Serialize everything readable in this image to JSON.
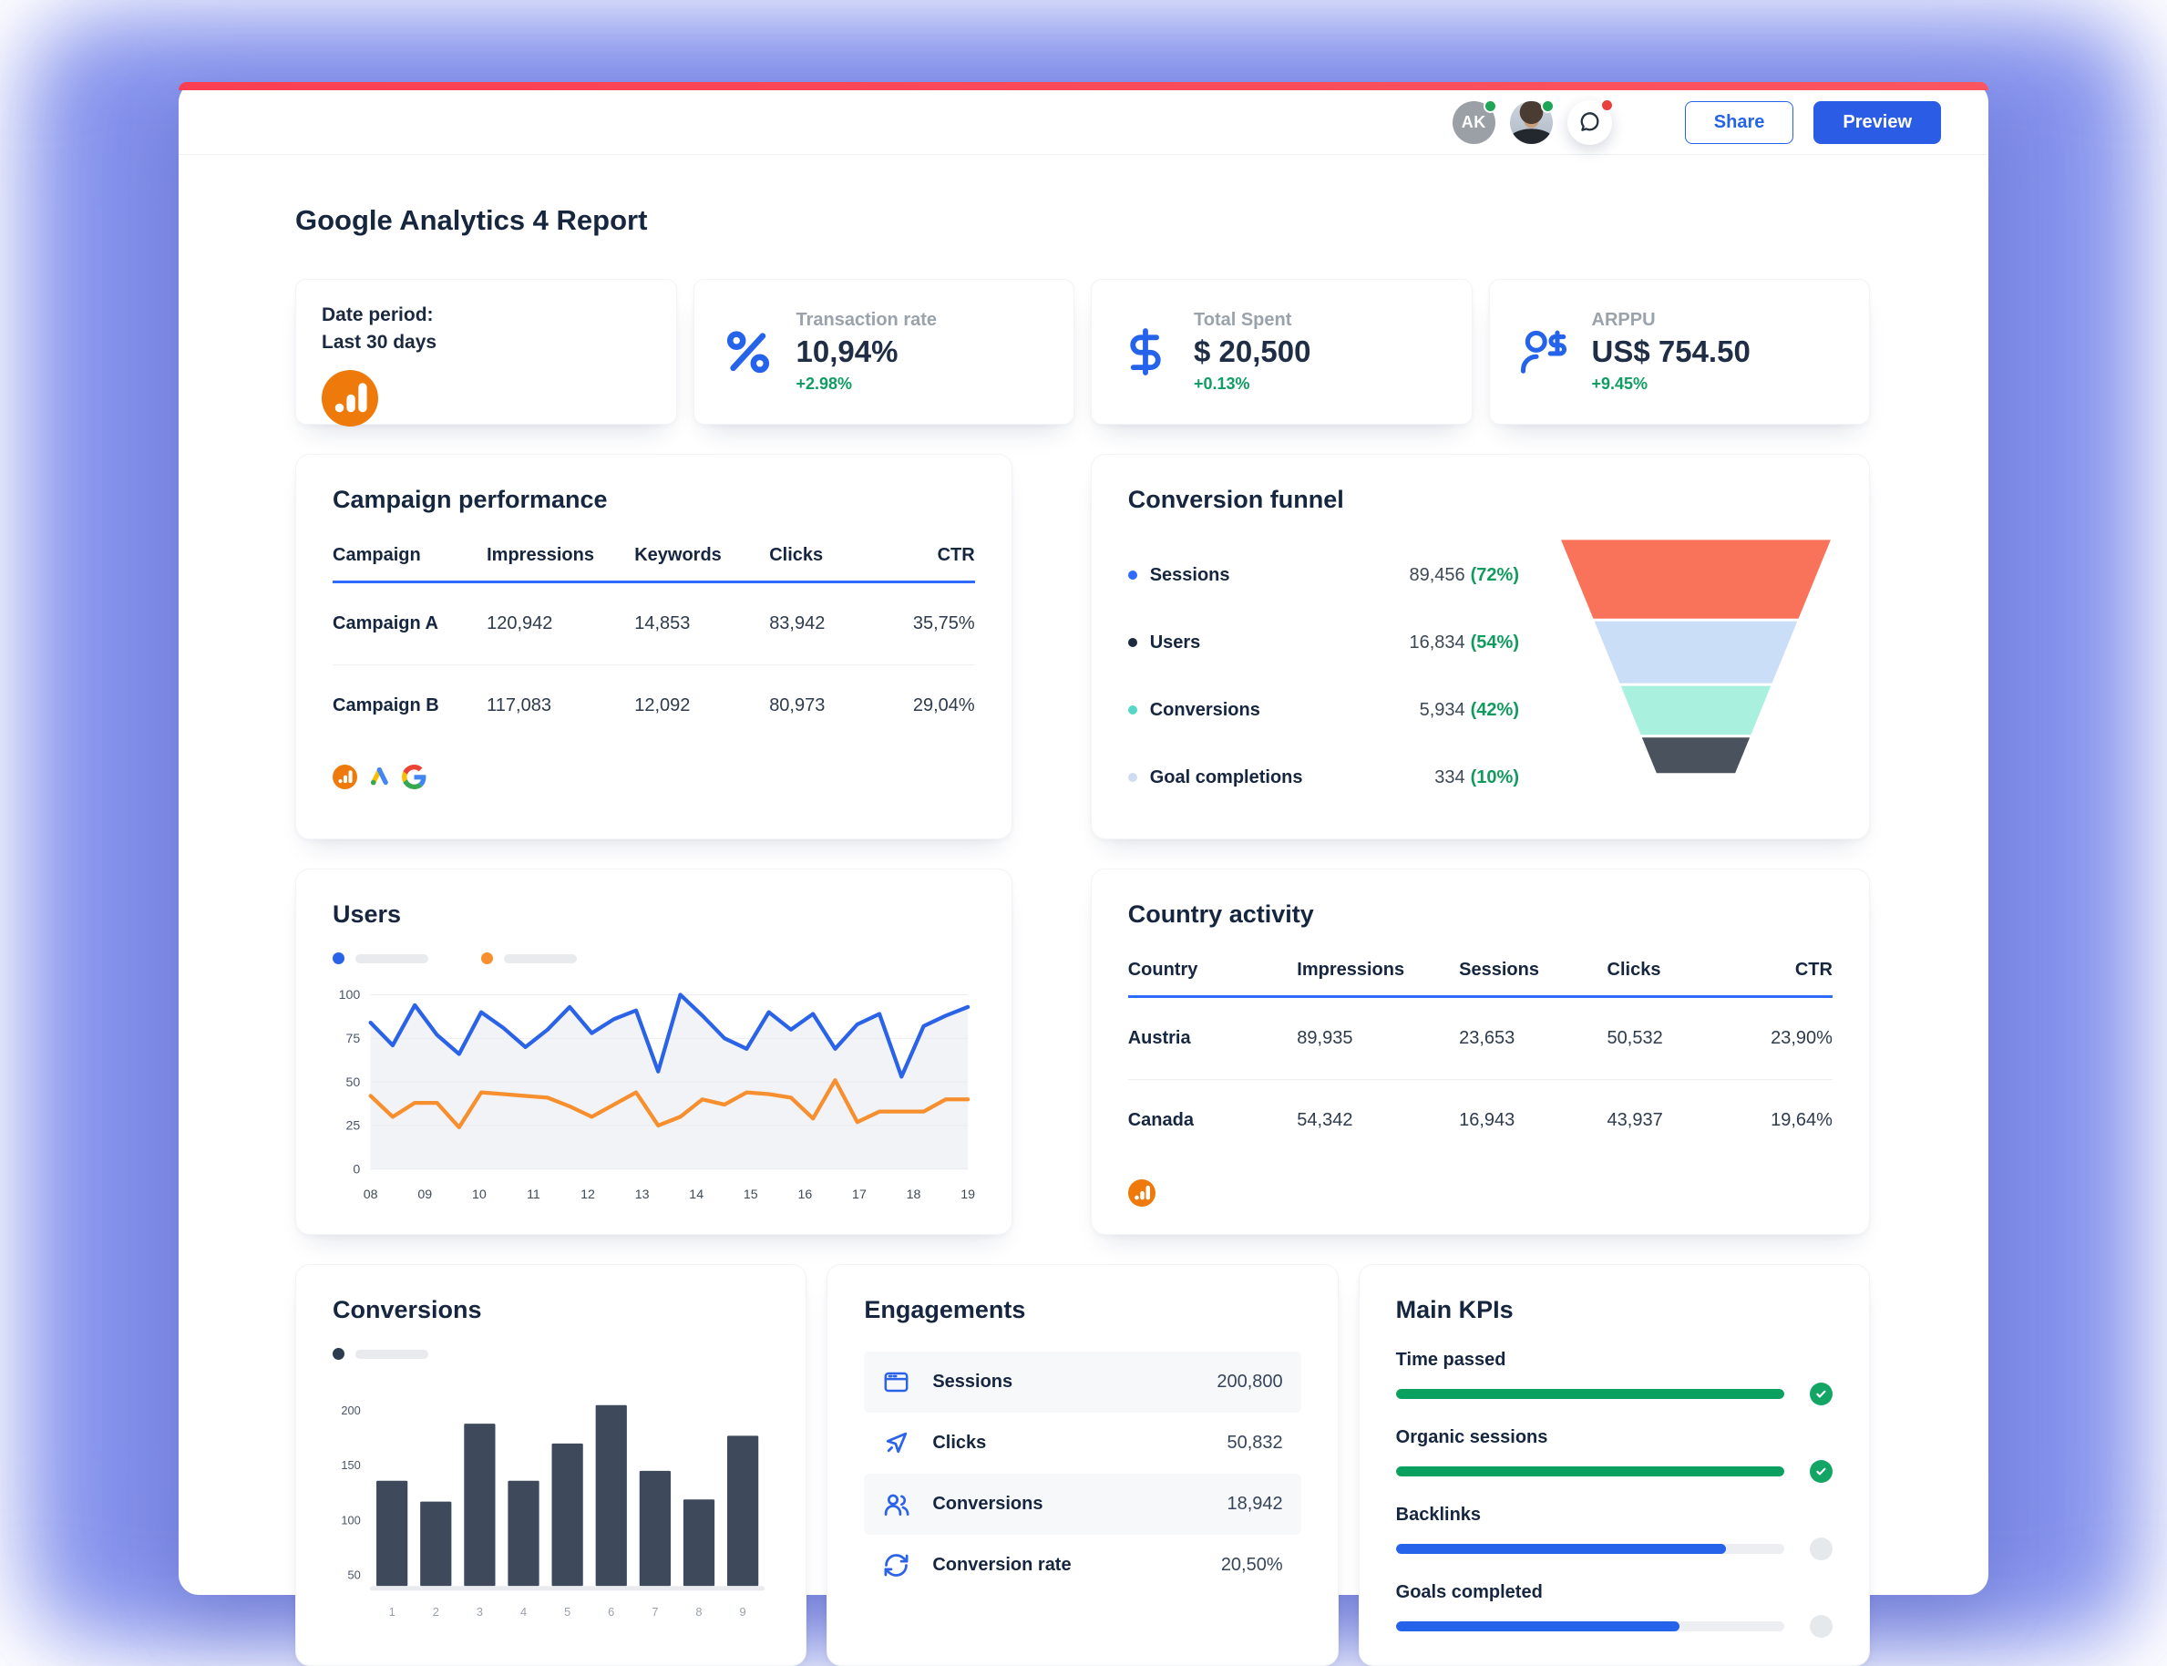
{
  "topbar": {
    "avatar_initials": "AK",
    "share_label": "Share",
    "preview_label": "Preview"
  },
  "page_title": "Google Analytics 4 Report",
  "colors": {
    "accent_bar": "#fb4455",
    "primary_blue": "#2563eb",
    "positive_green": "#0f9d63",
    "table_underline": "#2f6bff"
  },
  "kpi_cards": {
    "date_period": {
      "line1": "Date period:",
      "line2": "Last 30 days",
      "icon": "google-analytics-icon"
    },
    "transaction_rate": {
      "label": "Transaction rate",
      "value": "10,94%",
      "delta": "+2.98%",
      "icon": "percent-icon"
    },
    "total_spent": {
      "label": "Total Spent",
      "value": "$ 20,500",
      "delta": "+0.13%",
      "icon": "dollar-icon"
    },
    "arppu": {
      "label": "ARPPU",
      "value": "US$ 754.50",
      "delta": "+9.45%",
      "icon": "user-dollar-icon"
    }
  },
  "campaign_performance": {
    "title": "Campaign performance",
    "columns": [
      "Campaign",
      "Impressions",
      "Keywords",
      "Clicks",
      "CTR"
    ],
    "rows": [
      [
        "Campaign A",
        "120,942",
        "14,853",
        "83,942",
        "35,75%"
      ],
      [
        "Campaign B",
        "117,083",
        "12,092",
        "80,973",
        "29,04%"
      ]
    ],
    "source_icons": [
      "google-analytics-icon",
      "google-ads-icon",
      "google-icon"
    ]
  },
  "conversion_funnel": {
    "title": "Conversion funnel",
    "stages": [
      {
        "label": "Sessions",
        "value": "89,456",
        "pct": "(72%)",
        "dot_color": "#2f6bff",
        "segment_color": "#f9735b"
      },
      {
        "label": "Users",
        "value": "16,834",
        "pct": "(54%)",
        "dot_color": "#1b2a3d",
        "segment_color": "#cbdef7"
      },
      {
        "label": "Conversions",
        "value": "5,934",
        "pct": "(42%)",
        "dot_color": "#57d7c6",
        "segment_color": "#a9f0df"
      },
      {
        "label": "Goal completions",
        "value": "334",
        "pct": "(10%)",
        "dot_color": "#cfdcf0",
        "segment_color": "#49525d"
      }
    ]
  },
  "users_chart": {
    "title": "Users",
    "type": "line",
    "x_labels": [
      "08",
      "09",
      "10",
      "11",
      "12",
      "13",
      "14",
      "15",
      "16",
      "17",
      "18",
      "19"
    ],
    "y_ticks": [
      0,
      25,
      50,
      75,
      100
    ],
    "ylim": [
      0,
      100
    ],
    "grid": true,
    "series": [
      {
        "name": "users-series-blue",
        "color": "#2b63e8",
        "values": [
          84,
          71,
          94,
          77,
          66,
          90,
          81,
          70,
          80,
          93,
          78,
          86,
          91,
          56,
          100,
          88,
          75,
          69,
          90,
          80,
          89,
          69,
          83,
          89,
          53,
          82,
          88,
          93
        ]
      },
      {
        "name": "users-series-orange",
        "color": "#f78f2e",
        "values": [
          42,
          30,
          38,
          38,
          24,
          44,
          43,
          42,
          41,
          36,
          30,
          37,
          44,
          25,
          30,
          40,
          37,
          44,
          43,
          41,
          29,
          51,
          27,
          33,
          33,
          33,
          40,
          40
        ]
      }
    ]
  },
  "country_activity": {
    "title": "Country activity",
    "columns": [
      "Country",
      "Impressions",
      "Sessions",
      "Clicks",
      "CTR"
    ],
    "rows": [
      [
        "Austria",
        "89,935",
        "23,653",
        "50,532",
        "23,90%"
      ],
      [
        "Canada",
        "54,342",
        "16,943",
        "43,937",
        "19,64%"
      ]
    ],
    "source_icons": [
      "google-analytics-icon"
    ]
  },
  "conversions_chart": {
    "title": "Conversions",
    "type": "bar",
    "categories": [
      "1",
      "2",
      "3",
      "4",
      "5",
      "6",
      "7",
      "8",
      "9"
    ],
    "values": [
      136,
      117,
      188,
      136,
      170,
      205,
      145,
      119,
      177
    ],
    "y_ticks": [
      50,
      100,
      150,
      200
    ],
    "bar_color": "#3e4a5b",
    "legend_dot_color": "#2e3c50"
  },
  "engagements": {
    "title": "Engagements",
    "rows": [
      {
        "icon": "browser-icon",
        "label": "Sessions",
        "value": "200,800"
      },
      {
        "icon": "cursor-icon",
        "label": "Clicks",
        "value": "50,832"
      },
      {
        "icon": "people-icon",
        "label": "Conversions",
        "value": "18,942"
      },
      {
        "icon": "refresh-icon",
        "label": "Conversion rate",
        "value": "20,50%"
      }
    ]
  },
  "main_kpis": {
    "title": "Main KPIs",
    "items": [
      {
        "label": "Time passed",
        "progress": 100,
        "color": "#0aa05f",
        "done": true
      },
      {
        "label": "Organic sessions",
        "progress": 100,
        "color": "#0aa05f",
        "done": true
      },
      {
        "label": "Backlinks",
        "progress": 85,
        "color": "#2563eb",
        "done": false
      },
      {
        "label": "Goals completed",
        "progress": 73,
        "color": "#2563eb",
        "done": false
      }
    ]
  }
}
